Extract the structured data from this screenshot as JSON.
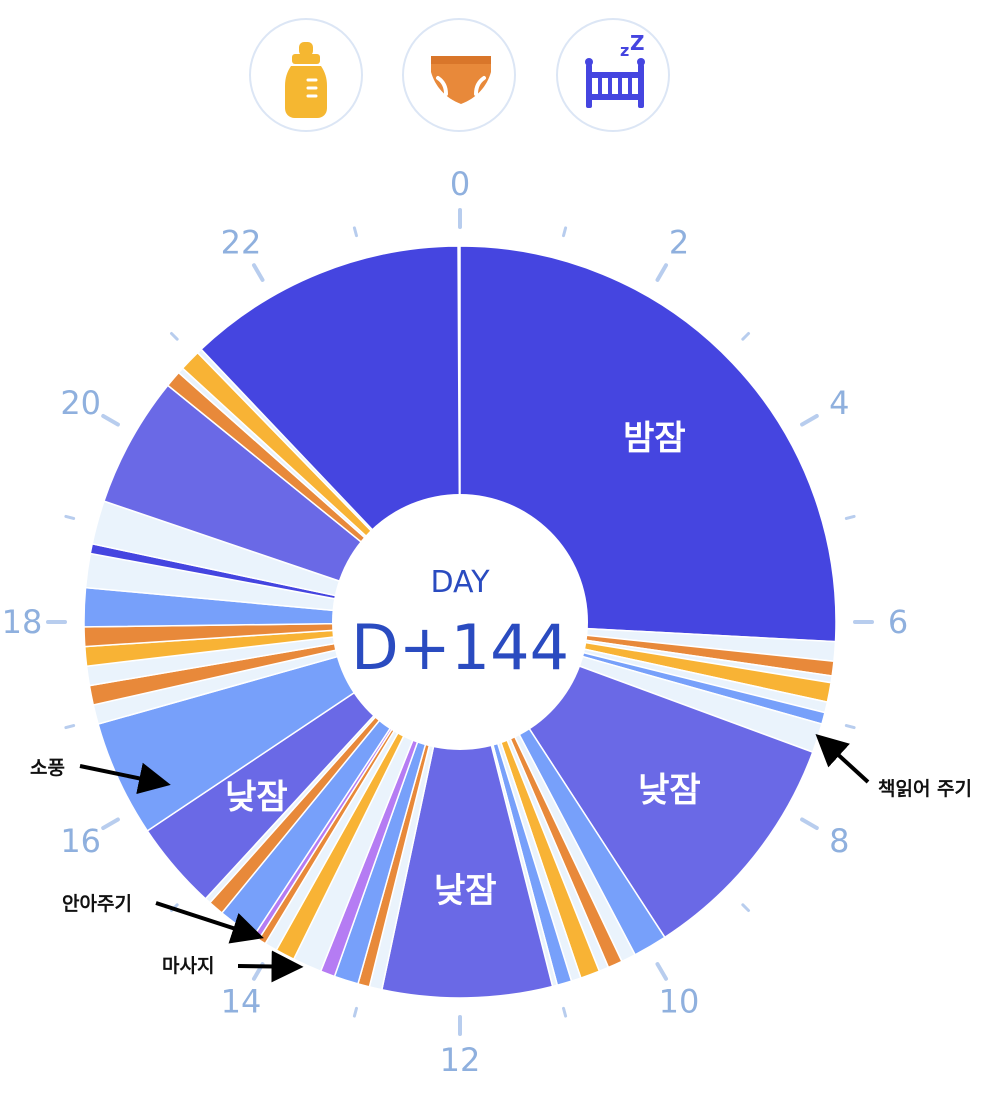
{
  "toolbar": {
    "buttons": [
      {
        "name": "feeding-button",
        "icon": "baby-bottle-icon",
        "color": "#f5b731"
      },
      {
        "name": "diaper-button",
        "icon": "diaper-icon",
        "color": "#e8893a"
      },
      {
        "name": "sleep-button",
        "icon": "crib-sleep-icon",
        "color": "#4545e0"
      }
    ]
  },
  "chart_data": {
    "type": "pie",
    "layout": "24-hour donut clock",
    "hour_labels": [
      "0",
      "2",
      "4",
      "6",
      "8",
      "10",
      "12",
      "14",
      "16",
      "18",
      "20",
      "22"
    ],
    "center": {
      "top": "DAY",
      "main": "D+144"
    },
    "colors": {
      "night_sleep": "#4545e0",
      "nap": "#6a69e6",
      "blue": "#77a0fa",
      "light": "#eaf3fc",
      "orange": "#e8893a",
      "yellow": "#f8b335",
      "purple": "#b57cf3",
      "hour_label": "#8fb0de",
      "center_text": "#2a4bc0"
    },
    "segments": [
      {
        "start": 0.0,
        "end": 6.2,
        "category": "night_sleep",
        "label": "밤잠"
      },
      {
        "start": 6.2,
        "end": 6.4,
        "category": "light"
      },
      {
        "start": 6.4,
        "end": 6.55,
        "category": "orange"
      },
      {
        "start": 6.55,
        "end": 6.62,
        "category": "light"
      },
      {
        "start": 6.62,
        "end": 6.82,
        "category": "yellow"
      },
      {
        "start": 6.82,
        "end": 6.93,
        "category": "light"
      },
      {
        "start": 6.93,
        "end": 7.05,
        "category": "blue"
      },
      {
        "start": 7.05,
        "end": 7.35,
        "category": "light"
      },
      {
        "start": 7.35,
        "end": 9.8,
        "category": "nap",
        "label": "낮잠"
      },
      {
        "start": 9.8,
        "end": 10.15,
        "category": "blue"
      },
      {
        "start": 10.15,
        "end": 10.3,
        "category": "light"
      },
      {
        "start": 10.3,
        "end": 10.45,
        "category": "orange"
      },
      {
        "start": 10.45,
        "end": 10.55,
        "category": "light"
      },
      {
        "start": 10.55,
        "end": 10.75,
        "category": "yellow"
      },
      {
        "start": 10.75,
        "end": 10.85,
        "category": "light"
      },
      {
        "start": 10.85,
        "end": 11.0,
        "category": "blue"
      },
      {
        "start": 11.0,
        "end": 11.05,
        "category": "light"
      },
      {
        "start": 11.05,
        "end": 12.8,
        "category": "nap",
        "label": "낮잠"
      },
      {
        "start": 12.8,
        "end": 12.93,
        "category": "light"
      },
      {
        "start": 12.93,
        "end": 13.05,
        "category": "orange"
      },
      {
        "start": 13.05,
        "end": 13.3,
        "category": "blue"
      },
      {
        "start": 13.3,
        "end": 13.45,
        "category": "purple"
      },
      {
        "start": 13.45,
        "end": 13.75,
        "category": "light"
      },
      {
        "start": 13.75,
        "end": 13.95,
        "category": "yellow"
      },
      {
        "start": 13.95,
        "end": 14.08,
        "category": "light"
      },
      {
        "start": 14.08,
        "end": 14.16,
        "category": "orange"
      },
      {
        "start": 14.16,
        "end": 14.22,
        "category": "purple"
      },
      {
        "start": 14.22,
        "end": 14.62,
        "category": "blue"
      },
      {
        "start": 14.62,
        "end": 14.78,
        "category": "orange"
      },
      {
        "start": 14.78,
        "end": 14.84,
        "category": "light"
      },
      {
        "start": 14.84,
        "end": 15.75,
        "category": "nap",
        "label": "낮잠"
      },
      {
        "start": 15.75,
        "end": 16.95,
        "category": "blue"
      },
      {
        "start": 16.95,
        "end": 17.15,
        "category": "light"
      },
      {
        "start": 17.15,
        "end": 17.35,
        "category": "orange"
      },
      {
        "start": 17.35,
        "end": 17.55,
        "category": "light"
      },
      {
        "start": 17.55,
        "end": 17.75,
        "category": "yellow"
      },
      {
        "start": 17.75,
        "end": 17.95,
        "category": "orange"
      },
      {
        "start": 17.95,
        "end": 18.35,
        "category": "blue"
      },
      {
        "start": 18.35,
        "end": 18.7,
        "category": "light"
      },
      {
        "start": 18.7,
        "end": 18.8,
        "category": "night_sleep"
      },
      {
        "start": 18.8,
        "end": 19.25,
        "category": "light"
      },
      {
        "start": 19.25,
        "end": 20.6,
        "category": "nap"
      },
      {
        "start": 20.6,
        "end": 20.77,
        "category": "orange"
      },
      {
        "start": 20.77,
        "end": 20.83,
        "category": "light"
      },
      {
        "start": 20.83,
        "end": 21.05,
        "category": "yellow"
      },
      {
        "start": 21.05,
        "end": 21.1,
        "category": "light"
      },
      {
        "start": 21.1,
        "end": 23.98,
        "category": "night_sleep"
      }
    ],
    "annotations": [
      {
        "text": "책읽어 주기",
        "hour": 7.2
      },
      {
        "text": "소풍",
        "hour": 16.1
      },
      {
        "text": "안아주기",
        "hour": 14.2
      },
      {
        "text": "마사지",
        "hour": 13.7
      }
    ]
  }
}
